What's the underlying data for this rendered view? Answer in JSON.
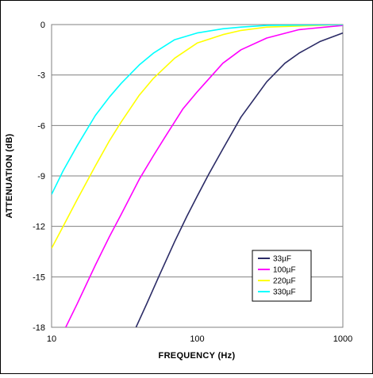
{
  "chart_data": {
    "type": "line",
    "title": "",
    "xlabel": "FREQUENCY (Hz)",
    "ylabel": "ATTENUATION (dB)",
    "xscale": "log",
    "xlim": [
      10,
      1000
    ],
    "ylim": [
      -18,
      0
    ],
    "xticks": [
      10,
      100,
      1000
    ],
    "yticks": [
      0,
      -3,
      -6,
      -9,
      -12,
      -15,
      -18
    ],
    "grid": "horizontal",
    "legend_position": "bottom-right",
    "series": [
      {
        "name": "33µF",
        "color": "#2b2b66",
        "x": [
          38,
          45,
          55,
          70,
          85,
          100,
          120,
          150,
          200,
          300,
          400,
          500,
          700,
          1000
        ],
        "y": [
          -18,
          -16.6,
          -14.9,
          -12.9,
          -11.4,
          -10.2,
          -8.9,
          -7.4,
          -5.5,
          -3.4,
          -2.3,
          -1.7,
          -1,
          -0.5
        ]
      },
      {
        "name": "100µF",
        "color": "#ff00ff",
        "x": [
          12.5,
          15,
          20,
          25,
          30,
          40,
          50,
          60,
          80,
          100,
          150,
          200,
          300,
          500,
          1000
        ],
        "y": [
          -18,
          -16.6,
          -14.3,
          -12.6,
          -11.3,
          -9.2,
          -7.8,
          -6.7,
          -5,
          -4,
          -2.3,
          -1.5,
          -0.8,
          -0.3,
          -0.05
        ]
      },
      {
        "name": "220µF",
        "color": "#ffff00",
        "x": [
          10,
          12,
          15,
          20,
          25,
          30,
          40,
          50,
          70,
          100,
          150,
          200,
          300,
          1000
        ],
        "y": [
          -13.3,
          -12,
          -10.4,
          -8.4,
          -6.9,
          -5.8,
          -4.2,
          -3.2,
          -2.0,
          -1.1,
          -0.6,
          -0.35,
          -0.15,
          0
        ]
      },
      {
        "name": "330µF",
        "color": "#00ffff",
        "x": [
          10,
          12,
          15,
          20,
          25,
          30,
          40,
          50,
          70,
          100,
          150,
          200,
          300,
          1000
        ],
        "y": [
          -10.1,
          -8.7,
          -7.2,
          -5.4,
          -4.3,
          -3.5,
          -2.4,
          -1.7,
          -0.9,
          -0.5,
          -0.25,
          -0.15,
          -0.05,
          0
        ]
      }
    ]
  }
}
